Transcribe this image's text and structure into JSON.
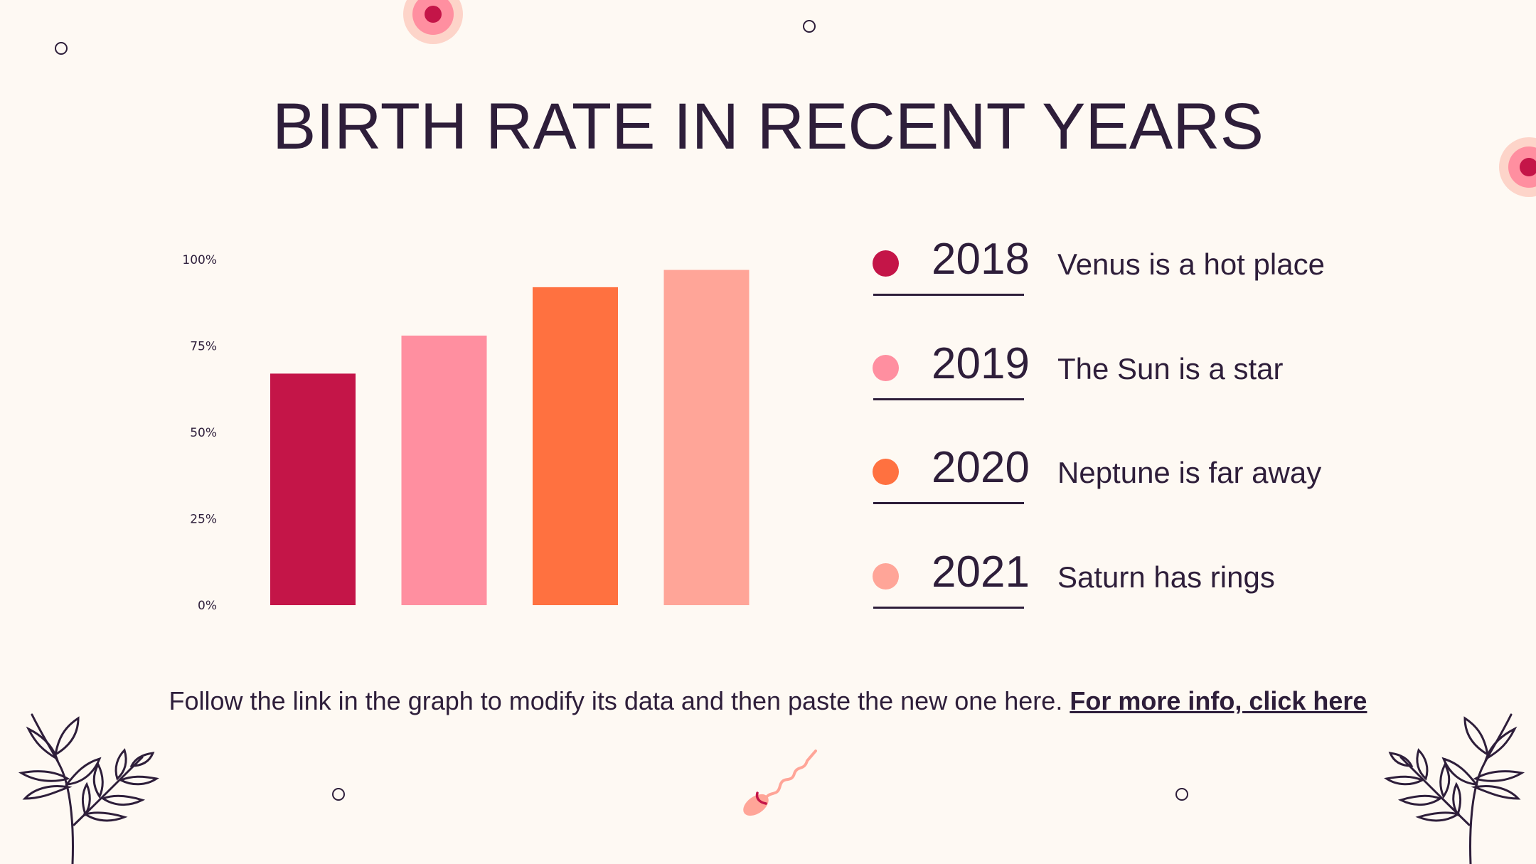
{
  "slide": {
    "title": "BIRTH RATE IN RECENT YEARS",
    "footnote_text": "Follow the link in the graph to modify its data and then paste the new one here.",
    "footnote_link": "For more info, click here"
  },
  "legend": [
    {
      "year": "2018",
      "text": "Venus is a hot place",
      "color": "#C41548"
    },
    {
      "year": "2019",
      "text": "The Sun is a star",
      "color": "#FF8FA0"
    },
    {
      "year": "2020",
      "text": "Neptune is far away",
      "color": "#FF7140"
    },
    {
      "year": "2021",
      "text": "Saturn has rings",
      "color": "#FFA598"
    }
  ],
  "chart_data": {
    "type": "bar",
    "categories": [
      "2018",
      "2019",
      "2020",
      "2021"
    ],
    "values": [
      67,
      78,
      92,
      97
    ],
    "colors": [
      "#C41548",
      "#FF8FA0",
      "#FF7140",
      "#FFA598"
    ],
    "ylim": [
      0,
      100
    ],
    "yticks": [
      "0%",
      "25%",
      "50%",
      "75%",
      "100%"
    ],
    "ytick_values": [
      0,
      25,
      50,
      75,
      100
    ],
    "grid": false,
    "legend": "right"
  },
  "decor": {
    "target_colors": [
      "#FDD4C9",
      "#FF8FA0",
      "#C41548"
    ],
    "leaf_color": "#2E1E3A",
    "sperm_color": "#FFA598"
  }
}
